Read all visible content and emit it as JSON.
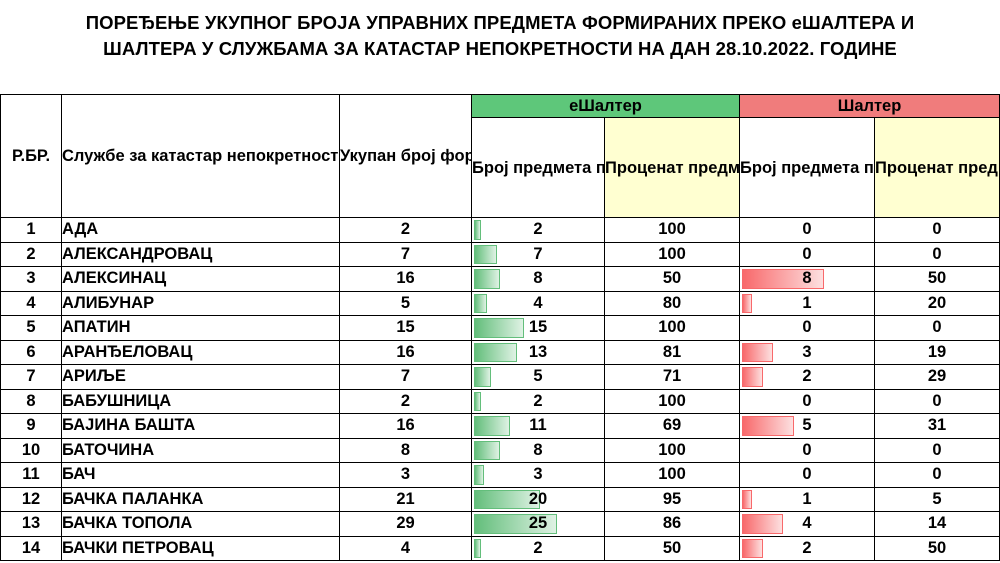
{
  "title": {
    "line1": "ПОРЕЂЕЊЕ УКУПНОГ БРОЈА УПРАВНИХ ПРЕДМЕТА ФОРМИРАНИХ ПРЕКО еШАЛТЕРА И",
    "line2": "ШАЛТЕРА У СЛУЖБАМА ЗА КАТАСТАР НЕПОКРЕТНОСТИ НА ДАН 28.10.2022. ГОДИНЕ"
  },
  "headers": {
    "rbr": "Р.БР.",
    "office": "Службе за катастар непокретности",
    "total": "Укупан број формираних управних предмета",
    "eshalter_group": "еШалтер",
    "e_count": "Број предмета преко еШалтера",
    "e_pct": "Проценат предмета еШалтер",
    "shalter_group": "Шалтер",
    "s_count": "Број предмета преко шалтера",
    "s_pct": "Проценат предмета шалтер"
  },
  "colors": {
    "eshalter_header": "#5ec77a",
    "shalter_header": "#f07c7c",
    "percent_header": "#ffffd1",
    "green_databar": "#63be7b",
    "red_databar": "#f8696b"
  },
  "rows": [
    {
      "rbr": "1",
      "office": "АДА",
      "total": "2",
      "e_count": "2",
      "e_pct": "100",
      "s_count": "0",
      "s_pct": "0"
    },
    {
      "rbr": "2",
      "office": "АЛЕКСАНДРОВАЦ",
      "total": "7",
      "e_count": "7",
      "e_pct": "100",
      "s_count": "0",
      "s_pct": "0"
    },
    {
      "rbr": "3",
      "office": "АЛЕКСИНАЦ",
      "total": "16",
      "e_count": "8",
      "e_pct": "50",
      "s_count": "8",
      "s_pct": "50"
    },
    {
      "rbr": "4",
      "office": "АЛИБУНАР",
      "total": "5",
      "e_count": "4",
      "e_pct": "80",
      "s_count": "1",
      "s_pct": "20"
    },
    {
      "rbr": "5",
      "office": "АПАТИН",
      "total": "15",
      "e_count": "15",
      "e_pct": "100",
      "s_count": "0",
      "s_pct": "0"
    },
    {
      "rbr": "6",
      "office": "АРАНЂЕЛОВАЦ",
      "total": "16",
      "e_count": "13",
      "e_pct": "81",
      "s_count": "3",
      "s_pct": "19"
    },
    {
      "rbr": "7",
      "office": "АРИЉЕ",
      "total": "7",
      "e_count": "5",
      "e_pct": "71",
      "s_count": "2",
      "s_pct": "29"
    },
    {
      "rbr": "8",
      "office": "БАБУШНИЦА",
      "total": "2",
      "e_count": "2",
      "e_pct": "100",
      "s_count": "0",
      "s_pct": "0"
    },
    {
      "rbr": "9",
      "office": "БАЈИНА БАШТА",
      "total": "16",
      "e_count": "11",
      "e_pct": "69",
      "s_count": "5",
      "s_pct": "31"
    },
    {
      "rbr": "10",
      "office": "БАТОЧИНА",
      "total": "8",
      "e_count": "8",
      "e_pct": "100",
      "s_count": "0",
      "s_pct": "0"
    },
    {
      "rbr": "11",
      "office": "БАЧ",
      "total": "3",
      "e_count": "3",
      "e_pct": "100",
      "s_count": "0",
      "s_pct": "0"
    },
    {
      "rbr": "12",
      "office": "БАЧКА ПАЛАНКА",
      "total": "21",
      "e_count": "20",
      "e_pct": "95",
      "s_count": "1",
      "s_pct": "5"
    },
    {
      "rbr": "13",
      "office": "БАЧКА ТОПОЛА",
      "total": "29",
      "e_count": "25",
      "e_pct": "86",
      "s_count": "4",
      "s_pct": "14"
    },
    {
      "rbr": "14",
      "office": "БАЧКИ ПЕТРОВАЦ",
      "total": "4",
      "e_count": "2",
      "e_pct": "50",
      "s_count": "2",
      "s_pct": "50"
    }
  ]
}
